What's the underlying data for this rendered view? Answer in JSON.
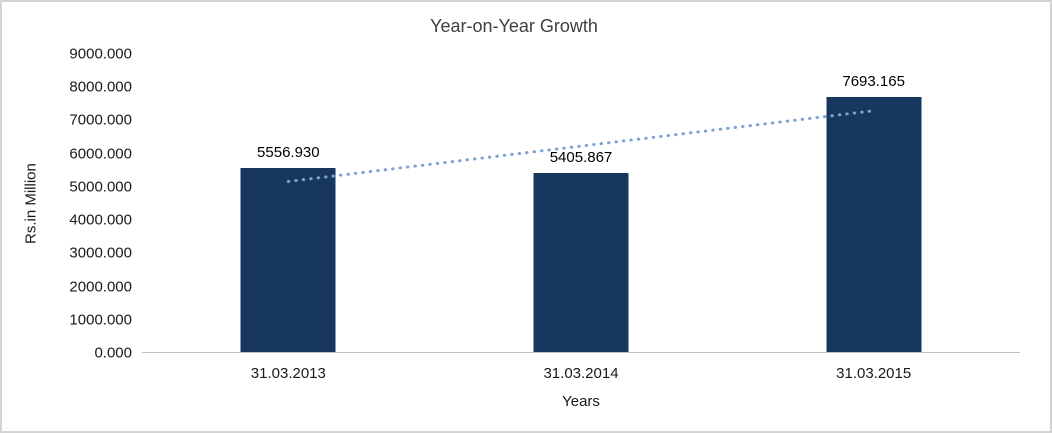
{
  "chart_data": {
    "type": "bar",
    "title": "Year-on-Year Growth",
    "xlabel": "Years",
    "ylabel": "Rs.in Million",
    "categories": [
      "31.03.2013",
      "31.03.2014",
      "31.03.2015"
    ],
    "values": [
      5556.93,
      5405.867,
      7693.165
    ],
    "value_labels": [
      "5556.930",
      "5405.867",
      "7693.165"
    ],
    "ylim": [
      0,
      9000
    ],
    "yticks": [
      "0.000",
      "1000.000",
      "2000.000",
      "3000.000",
      "4000.000",
      "5000.000",
      "6000.000",
      "7000.000",
      "8000.000",
      "9000.000"
    ],
    "grid": false,
    "legend": false,
    "bar_color": "#17375e",
    "axis_line_color": "#bfbfbf",
    "trendline": {
      "style": "dotted",
      "color": "#7ba3d4",
      "values": [
        5150.5,
        6218.7,
        7286.9
      ]
    }
  }
}
